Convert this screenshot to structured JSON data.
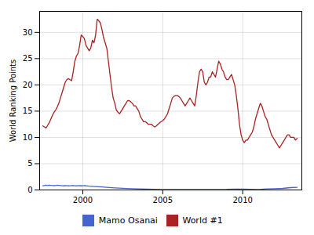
{
  "chart_data": {
    "type": "line",
    "ylabel": "World Ranking Points",
    "series": [
      {
        "name": "Mamo Osanai",
        "color": "#4466cc",
        "x": [
          1997.5,
          1997.6,
          1997.7,
          1997.8,
          1997.9,
          1998.0,
          1998.1,
          1998.2,
          1998.3,
          1998.4,
          1998.5,
          1998.6,
          1998.7,
          1998.8,
          1998.9,
          1999.0,
          1999.1,
          1999.2,
          1999.3,
          1999.4,
          1999.5,
          1999.6,
          1999.7,
          1999.8,
          1999.9,
          2000.0,
          2000.1,
          2000.2,
          2000.3,
          2000.4,
          2000.5,
          2001.0,
          2001.5,
          2002.0,
          2003.0,
          2004.0,
          2005.0,
          2006.0,
          2006.5,
          2007.0,
          2008.0,
          2009.0,
          2009.5,
          2010.0,
          2011.0,
          2011.5,
          2012.0,
          2012.5,
          2013.0,
          2013.4
        ],
        "values": [
          0.8,
          0.85,
          0.9,
          0.85,
          0.9,
          0.88,
          0.85,
          0.82,
          0.85,
          0.9,
          0.88,
          0.85,
          0.8,
          0.78,
          0.82,
          0.8,
          0.78,
          0.8,
          0.82,
          0.85,
          0.8,
          0.78,
          0.8,
          0.82,
          0.78,
          0.8,
          0.82,
          0.78,
          0.75,
          0.72,
          0.7,
          0.6,
          0.5,
          0.4,
          0.25,
          0.15,
          0.1,
          0.08,
          0.1,
          0.08,
          0.08,
          0.12,
          0.18,
          0.15,
          0.1,
          0.2,
          0.25,
          0.3,
          0.45,
          0.5
        ]
      },
      {
        "name": "World #1",
        "color": "#aa2222",
        "x": [
          1997.5,
          1997.6,
          1997.7,
          1997.8,
          1997.9,
          1998.0,
          1998.1,
          1998.2,
          1998.3,
          1998.4,
          1998.5,
          1998.6,
          1998.7,
          1998.8,
          1998.9,
          1999.0,
          1999.1,
          1999.2,
          1999.3,
          1999.4,
          1999.5,
          1999.6,
          1999.7,
          1999.8,
          1999.9,
          2000.0,
          2000.1,
          2000.2,
          2000.3,
          2000.4,
          2000.5,
          2000.6,
          2000.7,
          2000.8,
          2000.9,
          2001.0,
          2001.1,
          2001.2,
          2001.3,
          2001.4,
          2001.5,
          2001.6,
          2001.7,
          2001.8,
          2001.9,
          2002.0,
          2002.1,
          2002.2,
          2002.3,
          2002.4,
          2002.5,
          2002.6,
          2002.7,
          2002.8,
          2002.9,
          2003.0,
          2003.1,
          2003.2,
          2003.3,
          2003.4,
          2003.5,
          2003.6,
          2003.7,
          2003.8,
          2003.9,
          2004.0,
          2004.1,
          2004.2,
          2004.3,
          2004.4,
          2004.5,
          2004.6,
          2004.7,
          2004.8,
          2004.9,
          2005.0,
          2005.1,
          2005.2,
          2005.3,
          2005.4,
          2005.5,
          2005.6,
          2005.7,
          2005.8,
          2005.9,
          2006.0,
          2006.1,
          2006.2,
          2006.3,
          2006.4,
          2006.5,
          2006.6,
          2006.7,
          2006.8,
          2006.9,
          2007.0,
          2007.1,
          2007.2,
          2007.3,
          2007.4,
          2007.5,
          2007.6,
          2007.7,
          2007.8,
          2007.9,
          2008.0,
          2008.1,
          2008.2,
          2008.3,
          2008.4,
          2008.5,
          2008.6,
          2008.7,
          2008.8,
          2008.9,
          2009.0,
          2009.1,
          2009.2,
          2009.3,
          2009.4,
          2009.5,
          2009.6,
          2009.7,
          2009.8,
          2009.9,
          2010.0,
          2010.1,
          2010.2,
          2010.3,
          2010.4,
          2010.5,
          2010.6,
          2010.7,
          2010.8,
          2010.9,
          2011.0,
          2011.1,
          2011.2,
          2011.3,
          2011.4,
          2011.5,
          2011.6,
          2011.7,
          2011.8,
          2011.9,
          2012.0,
          2012.1,
          2012.2,
          2012.3,
          2012.4,
          2012.5,
          2012.6,
          2012.7,
          2012.8,
          2012.9,
          2013.0,
          2013.1,
          2013.2,
          2013.3,
          2013.4
        ],
        "values": [
          12.2,
          12.0,
          11.8,
          12.3,
          12.8,
          13.5,
          14.2,
          14.8,
          15.2,
          15.8,
          16.5,
          17.5,
          18.5,
          19.5,
          20.5,
          21.0,
          21.2,
          21.0,
          20.8,
          22.5,
          24.5,
          25.5,
          26.0,
          27.5,
          29.5,
          29.2,
          28.8,
          27.5,
          27.0,
          26.5,
          27.0,
          28.5,
          28.0,
          29.5,
          32.5,
          32.2,
          31.8,
          30.5,
          29.0,
          28.0,
          27.0,
          24.5,
          22.0,
          19.5,
          17.5,
          16.5,
          15.2,
          14.8,
          14.5,
          15.0,
          15.5,
          16.0,
          16.5,
          17.0,
          17.0,
          16.8,
          16.5,
          16.0,
          16.0,
          15.5,
          15.0,
          14.0,
          13.5,
          13.0,
          13.0,
          12.8,
          12.5,
          12.5,
          12.5,
          12.2,
          12.0,
          12.2,
          12.5,
          12.8,
          13.0,
          13.2,
          13.5,
          14.0,
          14.5,
          15.5,
          16.5,
          17.5,
          17.8,
          18.0,
          18.0,
          17.8,
          17.5,
          17.0,
          16.5,
          16.0,
          16.5,
          17.0,
          17.5,
          17.0,
          16.5,
          16.0,
          18.0,
          20.5,
          22.5,
          23.0,
          22.5,
          20.5,
          20.0,
          20.5,
          21.5,
          21.5,
          22.5,
          22.0,
          21.5,
          23.0,
          24.5,
          24.0,
          23.0,
          22.5,
          21.5,
          21.0,
          21.0,
          21.5,
          22.0,
          21.0,
          20.0,
          18.0,
          15.5,
          12.5,
          10.5,
          9.5,
          9.0,
          9.5,
          9.5,
          10.0,
          10.5,
          11.0,
          12.0,
          13.5,
          14.5,
          15.5,
          16.5,
          16.0,
          15.0,
          14.0,
          13.5,
          12.5,
          11.5,
          10.5,
          10.0,
          9.5,
          9.0,
          8.5,
          8.0,
          8.5,
          9.0,
          9.5,
          10.0,
          10.5,
          10.5,
          10.0,
          10.0,
          10.0,
          9.5,
          9.8
        ]
      }
    ],
    "xlim": [
      1997.3,
      2013.7
    ],
    "xticks": [
      2000,
      2005,
      2010
    ],
    "ylim": [
      0,
      34
    ],
    "yticks": [
      0,
      5,
      10,
      15,
      20,
      25,
      30
    ],
    "grid": true,
    "legend": "bottom"
  }
}
